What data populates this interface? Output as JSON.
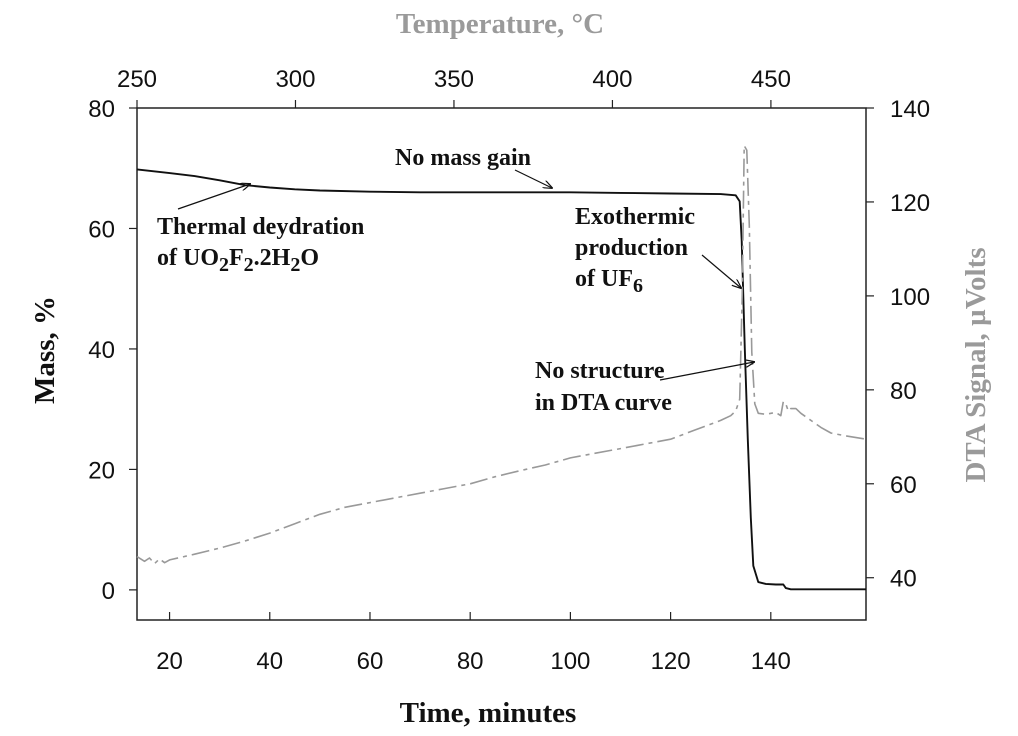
{
  "chart_data": {
    "type": "line",
    "xlabel": "Time, minutes",
    "x_top_label": "Temperature, °C",
    "ylabel_left": "Mass, %",
    "ylabel_right": "DTA Signal, µVolts",
    "xlim": [
      13.5,
      159
    ],
    "x_top_lim": [
      250,
      480
    ],
    "ylim_left": [
      -5,
      80
    ],
    "ylim_right": [
      31,
      140
    ],
    "x_ticks": [
      "20",
      "40",
      "60",
      "80",
      "100",
      "120",
      "140"
    ],
    "x_top_ticks": [
      "250",
      "300",
      "350",
      "400",
      "450"
    ],
    "y_left_ticks": [
      "0",
      "20",
      "40",
      "60",
      "80"
    ],
    "y_right_ticks": [
      "40",
      "60",
      "80",
      "100",
      "120",
      "140"
    ],
    "grid": false,
    "series": [
      {
        "name": "Mass, %",
        "axis": "left",
        "style": "solid",
        "color": "#111111",
        "x": [
          13.5,
          20,
          25,
          30,
          35,
          40,
          45,
          50,
          60,
          70,
          80,
          90,
          100,
          110,
          120,
          130,
          133,
          133.8,
          134.2,
          134.8,
          135.4,
          136,
          136.5,
          137.5,
          139,
          141,
          142.5,
          143,
          144,
          147,
          150,
          155,
          159
        ],
        "y": [
          69.8,
          69.2,
          68.7,
          68.0,
          67.2,
          66.8,
          66.5,
          66.3,
          66.1,
          66.0,
          66.0,
          66.0,
          66.0,
          65.9,
          65.8,
          65.7,
          65.5,
          64.5,
          58,
          40,
          25,
          12,
          4,
          1.3,
          1.0,
          0.9,
          0.9,
          0.3,
          0.1,
          0.1,
          0.1,
          0.1,
          0.1
        ]
      },
      {
        "name": "DTA Signal, µVolts",
        "axis": "right",
        "style": "dashed",
        "color": "#999999",
        "x": [
          13.5,
          15,
          16,
          17,
          18,
          19,
          20,
          25,
          30,
          35,
          40,
          45,
          50,
          55,
          60,
          65,
          70,
          75,
          80,
          85,
          90,
          95,
          100,
          105,
          110,
          115,
          120,
          125,
          130,
          132,
          133,
          133.8,
          134.3,
          134.7,
          135.2,
          135.7,
          136.2,
          136.8,
          137.5,
          139,
          141,
          142,
          142.5,
          143,
          143.5,
          144,
          145,
          146,
          148,
          150,
          152,
          155,
          159
        ],
        "y": [
          44.5,
          43.5,
          44.2,
          43.0,
          44.0,
          43.2,
          43.8,
          45.0,
          46.3,
          47.8,
          49.5,
          51.5,
          53.5,
          55.0,
          56.0,
          57.0,
          58.0,
          59.0,
          60.0,
          61.5,
          62.8,
          64.0,
          65.5,
          66.5,
          67.5,
          68.5,
          69.5,
          71.5,
          73.5,
          74.5,
          75.5,
          78,
          100,
          132,
          131,
          115,
          88,
          77,
          75,
          74.8,
          75.2,
          74.5,
          77.5,
          77.0,
          75.5,
          76.0,
          76.0,
          75.0,
          73.5,
          72.0,
          70.8,
          70.2,
          69.5
        ]
      }
    ],
    "annotations": [
      {
        "lines": [
          "No mass gain"
        ]
      },
      {
        "lines": [
          "Thermal deydration",
          "of UO2F2.2H2O"
        ]
      },
      {
        "lines": [
          "Exothermic",
          "production",
          "of UF6"
        ]
      },
      {
        "lines": [
          "No structure",
          "in DTA curve"
        ]
      }
    ]
  }
}
